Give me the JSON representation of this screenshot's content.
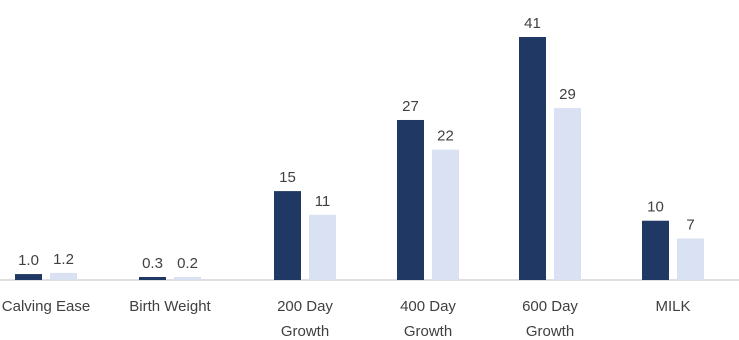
{
  "chart_data": {
    "type": "bar",
    "categories": [
      [
        "Calving Ease"
      ],
      [
        "Birth Weight"
      ],
      [
        "200 Day",
        "Growth"
      ],
      [
        "400 Day",
        "Growth"
      ],
      [
        "600 Day",
        "Growth"
      ],
      [
        "MILK"
      ]
    ],
    "series": [
      {
        "values": [
          1.0,
          0.3,
          15,
          27,
          41,
          10
        ],
        "labels": [
          "1.0",
          "0.3",
          "15",
          "27",
          "41",
          "10"
        ],
        "color": "#1f3864"
      },
      {
        "values": [
          1.2,
          0.2,
          11,
          22,
          29,
          7
        ],
        "labels": [
          "1.2",
          "0.2",
          "11",
          "22",
          "29",
          "7"
        ],
        "color": "#d9e1f2"
      }
    ],
    "title": "",
    "xlabel": "",
    "ylabel": "",
    "ylim": [
      0,
      41
    ],
    "grid": false,
    "legend": "none",
    "axis_line_color": "#bfbfbf"
  }
}
